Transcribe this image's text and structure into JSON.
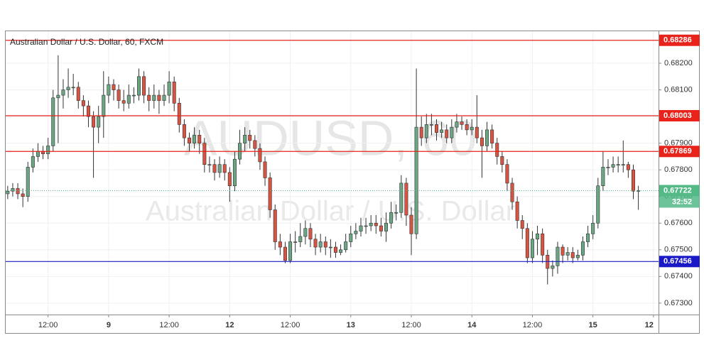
{
  "chart_data": {
    "type": "candlestick",
    "title": "Australian Dollar / U.S. Dollar, 60, FXCM",
    "watermark": "AUDUSD, 60",
    "watermark_subtitle": "Australian Dollar / U.S. Dollar",
    "up_color": "#6ba583",
    "down_color": "#d75442",
    "open": [
      0.6771,
      0.6772,
      0.6773,
      0.6771,
      0.677,
      0.6781,
      0.6785,
      0.6787,
      0.6786,
      0.6789,
      0.6807,
      0.6808,
      0.681,
      0.6811,
      0.6811,
      0.6806,
      0.6804,
      0.68,
      0.6796,
      0.68,
      0.6808,
      0.6812,
      0.681,
      0.6806,
      0.6805,
      0.6808,
      0.6808,
      0.6815,
      0.6808,
      0.6806,
      0.6808,
      0.6806,
      0.6808,
      0.6813,
      0.6805,
      0.6797,
      0.6792,
      0.679,
      0.6793,
      0.679,
      0.6782,
      0.6782,
      0.6779,
      0.6782,
      0.6779,
      0.6774,
      0.6784,
      0.679,
      0.6793,
      0.6791,
      0.6788,
      0.6783,
      0.6777,
      0.6765,
      0.6753,
      0.6751,
      0.6746,
      0.6753,
      0.6753,
      0.6755,
      0.6758,
      0.6754,
      0.6751,
      0.6753,
      0.6751,
      0.6751,
      0.6749,
      0.675,
      0.6753,
      0.6756,
      0.6757,
      0.6759,
      0.6759,
      0.676,
      0.6759,
      0.6757,
      0.676,
      0.6764,
      0.6764,
      0.6775,
      0.6763,
      0.6756,
      0.6796,
      0.6792,
      0.6797,
      0.6797,
      0.6794,
      0.6795,
      0.6792,
      0.6796,
      0.6798,
      0.6797,
      0.6795,
      0.6796,
      0.6792,
      0.6789,
      0.6795,
      0.679,
      0.6785,
      0.6782,
      0.6775,
      0.6768,
      0.6761,
      0.6758,
      0.6747,
      0.6754,
      0.6756,
      0.6748,
      0.6743,
      0.6744,
      0.6751,
      0.6748,
      0.6749,
      0.6747,
      0.6748,
      0.6753,
      0.6756,
      0.676,
      0.6774,
      0.6781,
      0.6781,
      0.6782,
      0.6782,
      0.6782,
      0.678,
      0.6772
    ],
    "high": [
      0.6774,
      0.6775,
      0.6775,
      0.6773,
      0.6783,
      0.6788,
      0.679,
      0.6789,
      0.6792,
      0.681,
      0.6823,
      0.6814,
      0.6818,
      0.6816,
      0.6813,
      0.6808,
      0.6806,
      0.6802,
      0.6804,
      0.6817,
      0.6815,
      0.6814,
      0.6812,
      0.681,
      0.6812,
      0.6811,
      0.6818,
      0.6817,
      0.6811,
      0.6812,
      0.681,
      0.6812,
      0.6817,
      0.6815,
      0.6807,
      0.6799,
      0.6794,
      0.6796,
      0.6795,
      0.6792,
      0.6785,
      0.6784,
      0.6785,
      0.6784,
      0.6781,
      0.6787,
      0.6795,
      0.6796,
      0.6795,
      0.6793,
      0.679,
      0.6785,
      0.6779,
      0.6767,
      0.6756,
      0.6753,
      0.6756,
      0.6757,
      0.676,
      0.6761,
      0.676,
      0.6756,
      0.6756,
      0.6755,
      0.6754,
      0.6753,
      0.6752,
      0.6756,
      0.6759,
      0.676,
      0.6762,
      0.6762,
      0.6763,
      0.6763,
      0.6762,
      0.6764,
      0.6768,
      0.6767,
      0.6778,
      0.6777,
      0.6766,
      0.6818,
      0.68,
      0.6801,
      0.6801,
      0.6799,
      0.6798,
      0.6797,
      0.6799,
      0.6801,
      0.68,
      0.6799,
      0.6799,
      0.6808,
      0.6795,
      0.6798,
      0.6797,
      0.6792,
      0.6787,
      0.6784,
      0.6777,
      0.677,
      0.6763,
      0.676,
      0.6757,
      0.6759,
      0.6758,
      0.675,
      0.6746,
      0.6753,
      0.6752,
      0.6751,
      0.6751,
      0.675,
      0.6755,
      0.6759,
      0.6763,
      0.6777,
      0.6787,
      0.6784,
      0.6785,
      0.6785,
      0.6791,
      0.6783,
      0.6782,
      0.6774
    ],
    "low": [
      0.6769,
      0.677,
      0.6769,
      0.6766,
      0.6768,
      0.6779,
      0.6783,
      0.6784,
      0.6784,
      0.6787,
      0.679,
      0.6803,
      0.6807,
      0.6808,
      0.6803,
      0.68,
      0.6796,
      0.6777,
      0.679,
      0.6792,
      0.6805,
      0.6806,
      0.6803,
      0.6802,
      0.6803,
      0.6805,
      0.6806,
      0.6805,
      0.6802,
      0.6803,
      0.6801,
      0.6804,
      0.6805,
      0.6802,
      0.6794,
      0.6789,
      0.6787,
      0.6788,
      0.6786,
      0.6779,
      0.6779,
      0.6776,
      0.6777,
      0.6776,
      0.6768,
      0.6772,
      0.6782,
      0.6787,
      0.6788,
      0.6785,
      0.678,
      0.6774,
      0.6762,
      0.675,
      0.6748,
      0.6745,
      0.6745,
      0.6749,
      0.6751,
      0.6752,
      0.6751,
      0.6748,
      0.6749,
      0.6748,
      0.6747,
      0.6747,
      0.6748,
      0.6749,
      0.6751,
      0.6754,
      0.6755,
      0.6756,
      0.6757,
      0.6756,
      0.6755,
      0.6753,
      0.6758,
      0.6761,
      0.6762,
      0.6759,
      0.6748,
      0.6754,
      0.6789,
      0.679,
      0.6793,
      0.6791,
      0.6792,
      0.679,
      0.679,
      0.6794,
      0.6795,
      0.6793,
      0.6793,
      0.679,
      0.6777,
      0.6787,
      0.6788,
      0.6782,
      0.6779,
      0.6772,
      0.6765,
      0.6758,
      0.6754,
      0.6745,
      0.6745,
      0.6748,
      0.6745,
      0.6737,
      0.674,
      0.6741,
      0.6745,
      0.6746,
      0.6745,
      0.6746,
      0.6746,
      0.6751,
      0.6754,
      0.6758,
      0.6772,
      0.6778,
      0.6779,
      0.6779,
      0.6779,
      0.6777,
      0.6769,
      0.6765
    ],
    "close": [
      0.6772,
      0.6773,
      0.6771,
      0.677,
      0.6781,
      0.6785,
      0.6787,
      0.6786,
      0.6789,
      0.6807,
      0.6808,
      0.681,
      0.6811,
      0.6811,
      0.6806,
      0.6804,
      0.68,
      0.6796,
      0.68,
      0.6808,
      0.6812,
      0.681,
      0.6806,
      0.6805,
      0.6808,
      0.6808,
      0.6815,
      0.6808,
      0.6806,
      0.6808,
      0.6806,
      0.6808,
      0.6813,
      0.6805,
      0.6797,
      0.6792,
      0.679,
      0.6793,
      0.679,
      0.6782,
      0.6782,
      0.6779,
      0.6782,
      0.6779,
      0.6774,
      0.6784,
      0.679,
      0.6793,
      0.6791,
      0.6788,
      0.6783,
      0.6777,
      0.6765,
      0.6753,
      0.6751,
      0.6746,
      0.6753,
      0.6753,
      0.6755,
      0.6758,
      0.6754,
      0.6751,
      0.6753,
      0.6751,
      0.6751,
      0.6749,
      0.675,
      0.6753,
      0.6756,
      0.6757,
      0.6759,
      0.6759,
      0.676,
      0.6759,
      0.6757,
      0.676,
      0.6764,
      0.6764,
      0.6775,
      0.6763,
      0.6756,
      0.6796,
      0.6792,
      0.6797,
      0.6797,
      0.6794,
      0.6795,
      0.6792,
      0.6796,
      0.6798,
      0.6797,
      0.6795,
      0.6796,
      0.6792,
      0.6789,
      0.6795,
      0.679,
      0.6785,
      0.6782,
      0.6775,
      0.6768,
      0.6761,
      0.6758,
      0.6747,
      0.6754,
      0.6756,
      0.6748,
      0.6743,
      0.6744,
      0.6751,
      0.6748,
      0.6749,
      0.6747,
      0.6748,
      0.6753,
      0.6756,
      0.676,
      0.6774,
      0.6781,
      0.6781,
      0.6782,
      0.6782,
      0.6782,
      0.678,
      0.6772,
      0.67722
    ],
    "xlim": [
      -0.4,
      129
    ],
    "xticks": [
      {
        "value": 8,
        "label": "12:00"
      },
      {
        "value": 20,
        "label": "9"
      },
      {
        "value": 32,
        "label": "12:00"
      },
      {
        "value": 44,
        "label": "12"
      },
      {
        "value": 56,
        "label": "12:00"
      },
      {
        "value": 68,
        "label": "13"
      },
      {
        "value": 80,
        "label": "12:00"
      },
      {
        "value": 92,
        "label": "14"
      },
      {
        "value": 104,
        "label": "12:00"
      },
      {
        "value": 116,
        "label": "15"
      },
      {
        "value": 128,
        "label": "12"
      }
    ],
    "ylim": [
      0.67257,
      0.6832
    ],
    "yticks": [
      {
        "value": 0.673,
        "label": "0.67300"
      },
      {
        "value": 0.674,
        "label": "0.67400"
      },
      {
        "value": 0.675,
        "label": "0.67500"
      },
      {
        "value": 0.676,
        "label": "0.67600"
      },
      {
        "value": 0.677,
        "label": "0.67700"
      },
      {
        "value": 0.678,
        "label": "0.67800"
      },
      {
        "value": 0.679,
        "label": "0.67900"
      },
      {
        "value": 0.68,
        "label": "0.68000"
      },
      {
        "value": 0.681,
        "label": "0.68100"
      },
      {
        "value": 0.682,
        "label": "0.68200"
      }
    ],
    "grid": true,
    "levels": [
      {
        "value": 0.68286,
        "color": "#e8231c"
      },
      {
        "value": 0.68003,
        "color": "#e8231c"
      },
      {
        "value": 0.67869,
        "color": "#e8231c"
      },
      {
        "value": 0.67456,
        "color": "#1919c8"
      }
    ],
    "current_price": 0.67722,
    "current_color": "#53b987",
    "countdown": "32:52"
  }
}
